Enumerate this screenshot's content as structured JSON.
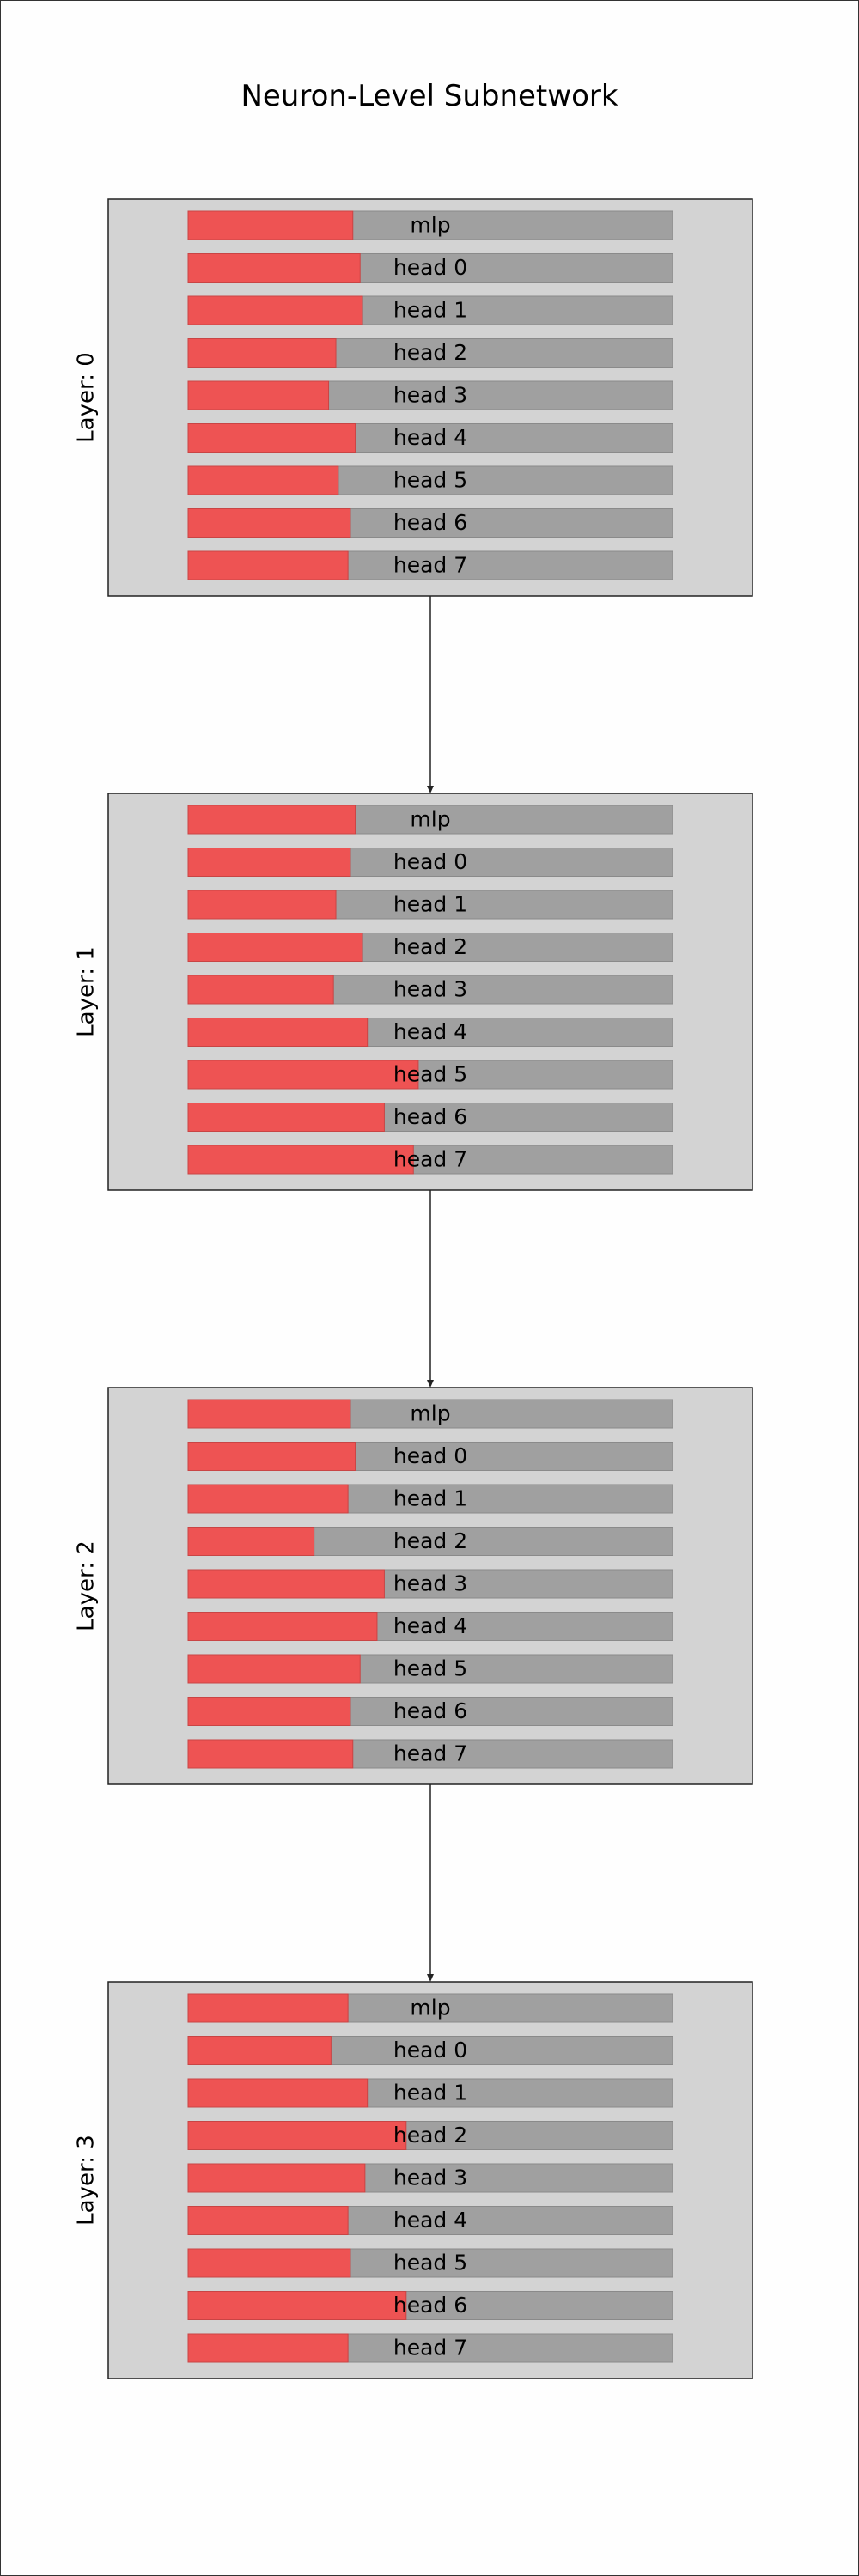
{
  "title": "Neuron-Level Subnetwork",
  "colors": {
    "panel_bg": "#d3d3d3",
    "panel_border": "#222222",
    "bar_track": "#a0a0a0",
    "bar_fill": "#ee5353",
    "arrow": "#222222"
  },
  "layers": [
    {
      "label": "Layer: 0",
      "rows": [
        {
          "name": "mlp",
          "fraction": 0.34
        },
        {
          "name": "head 0",
          "fraction": 0.355
        },
        {
          "name": "head 1",
          "fraction": 0.36
        },
        {
          "name": "head 2",
          "fraction": 0.305
        },
        {
          "name": "head 3",
          "fraction": 0.29
        },
        {
          "name": "head 4",
          "fraction": 0.345
        },
        {
          "name": "head 5",
          "fraction": 0.31
        },
        {
          "name": "head 6",
          "fraction": 0.335
        },
        {
          "name": "head 7",
          "fraction": 0.33
        }
      ]
    },
    {
      "label": "Layer: 1",
      "rows": [
        {
          "name": "mlp",
          "fraction": 0.345
        },
        {
          "name": "head 0",
          "fraction": 0.335
        },
        {
          "name": "head 1",
          "fraction": 0.305
        },
        {
          "name": "head 2",
          "fraction": 0.36
        },
        {
          "name": "head 3",
          "fraction": 0.3
        },
        {
          "name": "head 4",
          "fraction": 0.37
        },
        {
          "name": "head 5",
          "fraction": 0.475
        },
        {
          "name": "head 6",
          "fraction": 0.405
        },
        {
          "name": "head 7",
          "fraction": 0.465
        }
      ]
    },
    {
      "label": "Layer: 2",
      "rows": [
        {
          "name": "mlp",
          "fraction": 0.335
        },
        {
          "name": "head 0",
          "fraction": 0.345
        },
        {
          "name": "head 1",
          "fraction": 0.33
        },
        {
          "name": "head 2",
          "fraction": 0.26
        },
        {
          "name": "head 3",
          "fraction": 0.405
        },
        {
          "name": "head 4",
          "fraction": 0.39
        },
        {
          "name": "head 5",
          "fraction": 0.355
        },
        {
          "name": "head 6",
          "fraction": 0.335
        },
        {
          "name": "head 7",
          "fraction": 0.34
        }
      ]
    },
    {
      "label": "Layer: 3",
      "rows": [
        {
          "name": "mlp",
          "fraction": 0.33
        },
        {
          "name": "head 0",
          "fraction": 0.295
        },
        {
          "name": "head 1",
          "fraction": 0.37
        },
        {
          "name": "head 2",
          "fraction": 0.45
        },
        {
          "name": "head 3",
          "fraction": 0.365
        },
        {
          "name": "head 4",
          "fraction": 0.33
        },
        {
          "name": "head 5",
          "fraction": 0.335
        },
        {
          "name": "head 6",
          "fraction": 0.45
        },
        {
          "name": "head 7",
          "fraction": 0.33
        }
      ]
    }
  ]
}
